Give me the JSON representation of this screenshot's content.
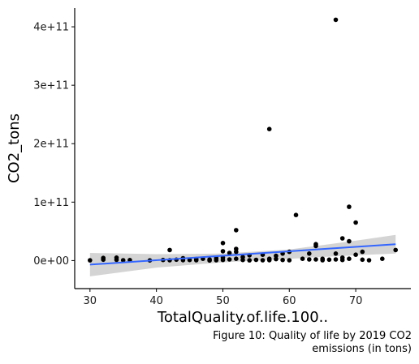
{
  "chart_data": {
    "type": "scatter",
    "title": "",
    "xlabel": "TotalQuality.of.life.100..",
    "ylabel": "CO2_tons",
    "xlim": [
      27.7,
      78.3
    ],
    "ylim": [
      -48000000000,
      432000000000
    ],
    "x_ticks": [
      {
        "value": 30,
        "label": "30"
      },
      {
        "value": 40,
        "label": "40"
      },
      {
        "value": 50,
        "label": "50"
      },
      {
        "value": 60,
        "label": "60"
      },
      {
        "value": 70,
        "label": "70"
      }
    ],
    "y_ticks": [
      {
        "value": 0,
        "label": "0e+00"
      },
      {
        "value": 100000000000,
        "label": "1e+11"
      },
      {
        "value": 200000000000,
        "label": "2e+11"
      },
      {
        "value": 300000000000,
        "label": "3e+11"
      },
      {
        "value": 400000000000,
        "label": "4e+11"
      }
    ],
    "grid": false,
    "points": [
      {
        "x": 30,
        "y": 400000000
      },
      {
        "x": 32,
        "y": 1500000000
      },
      {
        "x": 32,
        "y": 4500000000
      },
      {
        "x": 34,
        "y": 1200000000
      },
      {
        "x": 34,
        "y": 5000000000
      },
      {
        "x": 35,
        "y": 500000000
      },
      {
        "x": 36,
        "y": 800000000
      },
      {
        "x": 39,
        "y": 300000000
      },
      {
        "x": 41,
        "y": 1000000000
      },
      {
        "x": 42,
        "y": 600000000
      },
      {
        "x": 42,
        "y": 18000000000
      },
      {
        "x": 43,
        "y": 1500000000
      },
      {
        "x": 44,
        "y": 700000000
      },
      {
        "x": 44,
        "y": 4000000000
      },
      {
        "x": 45,
        "y": 1000000000
      },
      {
        "x": 46,
        "y": 500000000
      },
      {
        "x": 46,
        "y": 2500000000
      },
      {
        "x": 47,
        "y": 3000000000
      },
      {
        "x": 48,
        "y": 200000000
      },
      {
        "x": 48,
        "y": 1800000000
      },
      {
        "x": 49,
        "y": 600000000
      },
      {
        "x": 49,
        "y": 4000000000
      },
      {
        "x": 50,
        "y": 30000000000
      },
      {
        "x": 50,
        "y": 16000000000
      },
      {
        "x": 50,
        "y": 5000000000
      },
      {
        "x": 50,
        "y": 1000000000
      },
      {
        "x": 51,
        "y": 13000000000
      },
      {
        "x": 51,
        "y": 2000000000
      },
      {
        "x": 52,
        "y": 52000000000
      },
      {
        "x": 52,
        "y": 20000000000
      },
      {
        "x": 52,
        "y": 15000000000
      },
      {
        "x": 52,
        "y": 3000000000
      },
      {
        "x": 53,
        "y": 1000000000
      },
      {
        "x": 53,
        "y": 6000000000
      },
      {
        "x": 54,
        "y": 400000000
      },
      {
        "x": 54,
        "y": 9000000000
      },
      {
        "x": 55,
        "y": 1200000000
      },
      {
        "x": 56,
        "y": 500000000
      },
      {
        "x": 56,
        "y": 10000000000
      },
      {
        "x": 57,
        "y": 225000000000
      },
      {
        "x": 57,
        "y": 700000000
      },
      {
        "x": 57,
        "y": 3000000000
      },
      {
        "x": 58,
        "y": 2500000000
      },
      {
        "x": 58,
        "y": 8000000000
      },
      {
        "x": 59,
        "y": 1000000000
      },
      {
        "x": 59,
        "y": 12000000000
      },
      {
        "x": 60,
        "y": 15000000000
      },
      {
        "x": 60,
        "y": 500000000
      },
      {
        "x": 61,
        "y": 78000000000
      },
      {
        "x": 62,
        "y": 3000000000
      },
      {
        "x": 63,
        "y": 2000000000
      },
      {
        "x": 63,
        "y": 12000000000
      },
      {
        "x": 64,
        "y": 25000000000
      },
      {
        "x": 64,
        "y": 28000000000
      },
      {
        "x": 64,
        "y": 2000000000
      },
      {
        "x": 65,
        "y": 500000000
      },
      {
        "x": 65,
        "y": 3000000000
      },
      {
        "x": 66,
        "y": 1500000000
      },
      {
        "x": 67,
        "y": 412000000000
      },
      {
        "x": 67,
        "y": 12000000000
      },
      {
        "x": 67,
        "y": 2000000000
      },
      {
        "x": 68,
        "y": 38000000000
      },
      {
        "x": 68,
        "y": 5000000000
      },
      {
        "x": 68,
        "y": 1000000000
      },
      {
        "x": 69,
        "y": 92000000000
      },
      {
        "x": 69,
        "y": 33000000000
      },
      {
        "x": 69,
        "y": 3000000000
      },
      {
        "x": 70,
        "y": 65000000000
      },
      {
        "x": 70,
        "y": 10000000000
      },
      {
        "x": 71,
        "y": 15000000000
      },
      {
        "x": 71,
        "y": 1500000000
      },
      {
        "x": 72,
        "y": 500000000
      },
      {
        "x": 74,
        "y": 3000000000
      },
      {
        "x": 76,
        "y": 18000000000
      }
    ],
    "trend_line": {
      "x": [
        30,
        76
      ],
      "y": [
        -7000000000,
        28000000000
      ]
    },
    "confidence_band": {
      "x": [
        30,
        40,
        50,
        60,
        70,
        76
      ],
      "lower": [
        -27000000000,
        -12000000000,
        -3000000000,
        3000000000,
        9000000000,
        12000000000
      ],
      "upper": [
        13000000000,
        11000000000,
        12000000000,
        19000000000,
        34000000000,
        44000000000
      ]
    },
    "caption": "Figure 10: Quality of life by 2019 CO2 emissions (in tons)",
    "colors": {
      "points": "#000000",
      "trend_line": "#3366ff",
      "confidence_band": "#cccccc",
      "axis": "#000000"
    }
  }
}
